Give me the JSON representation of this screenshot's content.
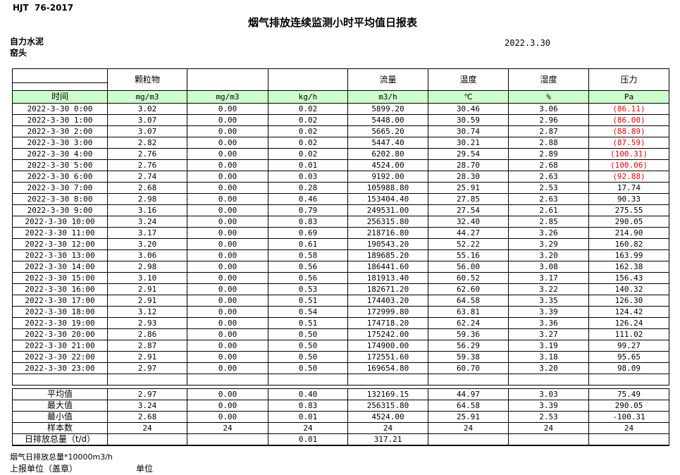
{
  "header": {
    "standard": "HJT  76-2017",
    "title": "烟气排放连续监测小时平均值日报表",
    "date": "2022.3.30",
    "company": "自力水泥",
    "station": "窑头"
  },
  "table": {
    "group_headers": [
      "",
      "颗粒物",
      "",
      "",
      "流量",
      "温度",
      "湿度",
      "压力"
    ],
    "units": [
      "时间",
      "mg/m3",
      "mg/m3",
      "kg/h",
      "m3/h",
      "℃",
      "%",
      "Pa"
    ],
    "header_bg": "#ccffcc",
    "negative_color": "#ff0000",
    "rows": [
      [
        "2022-3-30 0:00",
        "3.02",
        "0.00",
        "0.02",
        "5899.20",
        "30.46",
        "3.06",
        "(86.11)"
      ],
      [
        "2022-3-30 1:00",
        "3.07",
        "0.00",
        "0.02",
        "5448.00",
        "30.59",
        "2.96",
        "(86.00)"
      ],
      [
        "2022-3-30 2:00",
        "3.07",
        "0.00",
        "0.02",
        "5665.20",
        "30.74",
        "2.87",
        "(88.89)"
      ],
      [
        "2022-3-30 3:00",
        "2.82",
        "0.00",
        "0.02",
        "5447.40",
        "30.21",
        "2.88",
        "(87.59)"
      ],
      [
        "2022-3-30 4:00",
        "2.76",
        "0.00",
        "0.02",
        "6202.80",
        "29.54",
        "2.89",
        "(100.31)"
      ],
      [
        "2022-3-30 5:00",
        "2.76",
        "0.00",
        "0.01",
        "4524.00",
        "28.70",
        "2.68",
        "(100.06)"
      ],
      [
        "2022-3-30 6:00",
        "2.74",
        "0.00",
        "0.03",
        "9192.00",
        "28.30",
        "2.63",
        "(92.88)"
      ],
      [
        "2022-3-30 7:00",
        "2.68",
        "0.00",
        "0.28",
        "105988.80",
        "25.91",
        "2.53",
        "17.74"
      ],
      [
        "2022-3-30 8:00",
        "2.98",
        "0.00",
        "0.46",
        "153404.40",
        "27.85",
        "2.63",
        "90.33"
      ],
      [
        "2022-3-30 9:00",
        "3.16",
        "0.00",
        "0.79",
        "249531.00",
        "27.54",
        "2.61",
        "275.55"
      ],
      [
        "2022-3-30 10:00",
        "3.24",
        "0.00",
        "0.83",
        "256315.80",
        "32.40",
        "2.85",
        "290.05"
      ],
      [
        "2022-3-30 11:00",
        "3.17",
        "0.00",
        "0.69",
        "218716.80",
        "44.27",
        "3.26",
        "214.90"
      ],
      [
        "2022-3-30 12:00",
        "3.20",
        "0.00",
        "0.61",
        "190543.20",
        "52.22",
        "3.29",
        "160.82"
      ],
      [
        "2022-3-30 13:00",
        "3.06",
        "0.00",
        "0.58",
        "189685.20",
        "55.16",
        "3.20",
        "163.99"
      ],
      [
        "2022-3-30 14:00",
        "2.98",
        "0.00",
        "0.56",
        "186441.60",
        "56.00",
        "3.08",
        "162.38"
      ],
      [
        "2022-3-30 15:00",
        "3.10",
        "0.00",
        "0.56",
        "181913.40",
        "60.52",
        "3.17",
        "156.43"
      ],
      [
        "2022-3-30 16:00",
        "2.91",
        "0.00",
        "0.53",
        "182671.20",
        "62.60",
        "3.22",
        "140.32"
      ],
      [
        "2022-3-30 17:00",
        "2.91",
        "0.00",
        "0.51",
        "174403.20",
        "64.58",
        "3.35",
        "126.30"
      ],
      [
        "2022-3-30 18:00",
        "3.12",
        "0.00",
        "0.54",
        "172999.80",
        "63.81",
        "3.39",
        "124.42"
      ],
      [
        "2022-3-30 19:00",
        "2.93",
        "0.00",
        "0.51",
        "174718.20",
        "62.24",
        "3.36",
        "126.24"
      ],
      [
        "2022-3-30 20:00",
        "2.86",
        "0.00",
        "0.50",
        "175242.00",
        "59.36",
        "3.27",
        "111.02"
      ],
      [
        "2022-3-30 21:00",
        "2.87",
        "0.00",
        "0.50",
        "174900.00",
        "56.29",
        "3.19",
        "99.27"
      ],
      [
        "2022-3-30 22:00",
        "2.91",
        "0.00",
        "0.50",
        "172551.60",
        "59.38",
        "3.18",
        "95.65"
      ],
      [
        "2022-3-30 23:00",
        "2.97",
        "0.00",
        "0.50",
        "169654.80",
        "60.70",
        "3.20",
        "98.09"
      ]
    ],
    "blank_row": [
      "",
      "",
      "",
      "",
      "",
      "",
      "",
      ""
    ],
    "summary_rows": [
      [
        "平均值",
        "2.97",
        "0.00",
        "0.40",
        "132169.15",
        "44.97",
        "3.03",
        "75.49"
      ],
      [
        "最大值",
        "3.24",
        "0.00",
        "0.83",
        "256315.80",
        "64.58",
        "3.39",
        "290.05"
      ],
      [
        "最小值",
        "2.68",
        "0.00",
        "0.01",
        "4524.00",
        "25.91",
        "2.53",
        "-100.31"
      ],
      [
        "样本数",
        "24",
        "24",
        "24",
        "24",
        "24",
        "24",
        "24"
      ],
      [
        "日排放总量（t/d）",
        "",
        "",
        "0.01",
        "317.21",
        "",
        "",
        ""
      ]
    ]
  },
  "footer": {
    "note": "烟气日排放总量*10000m3/h",
    "report_unit": "上报单位（盖章）",
    "unit": "单位"
  }
}
